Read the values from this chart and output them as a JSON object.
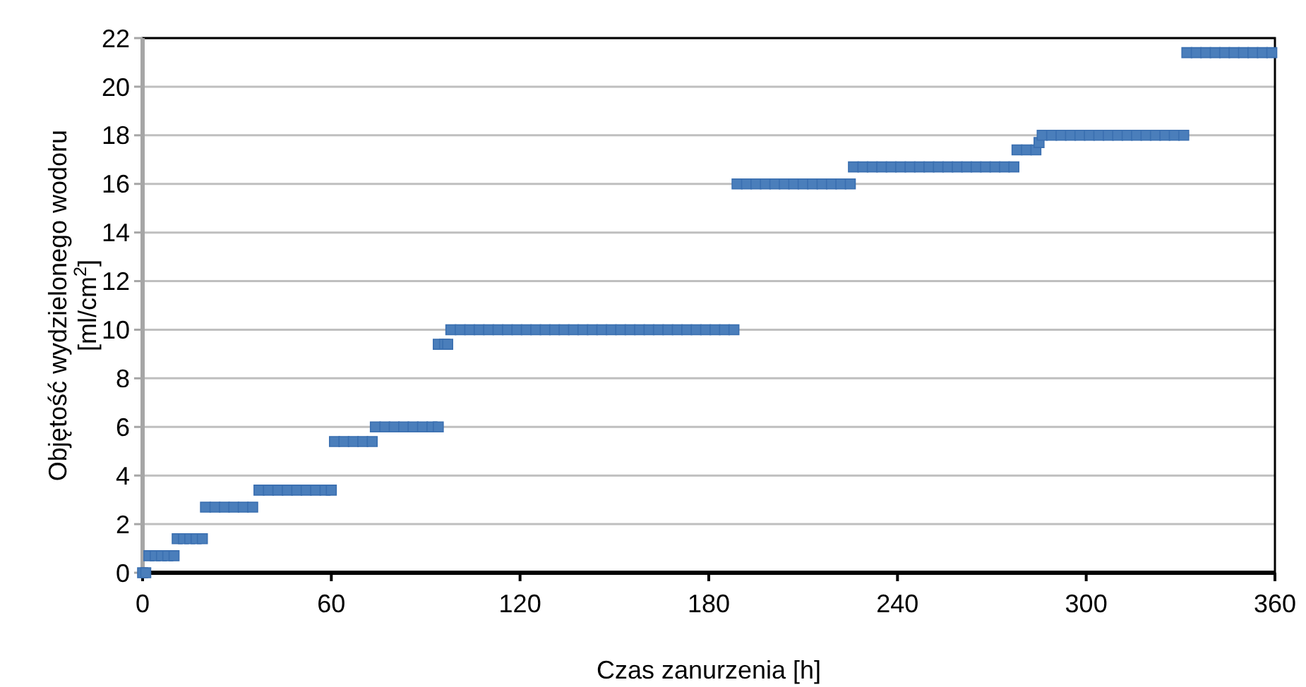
{
  "chart_data": {
    "type": "scatter",
    "xlabel": "Czas zanurzenia [h]",
    "ylabel": "Objętość wydzielonego wodoru [ml/cm$^{2}$]",
    "xlim": [
      0,
      360
    ],
    "xticks": [
      0,
      60,
      120,
      180,
      240,
      300,
      360
    ],
    "ylim": [
      0,
      22
    ],
    "yticks": [
      0,
      2,
      4,
      6,
      8,
      10,
      12,
      14,
      16,
      18,
      20,
      22
    ],
    "grid": "y",
    "marker": "square",
    "series": [
      {
        "color": "#4a7ebb",
        "x": [
          0,
          1,
          2,
          4,
          6,
          8,
          10,
          11,
          13,
          15,
          17,
          19,
          20,
          23,
          26,
          29,
          32,
          35,
          37,
          40,
          43,
          46,
          49,
          52,
          55,
          58,
          60,
          61,
          64,
          67,
          70,
          73,
          74,
          77,
          80,
          83,
          86,
          89,
          92,
          94,
          94,
          96,
          97,
          98,
          101,
          104,
          107,
          110,
          113,
          116,
          119,
          122,
          125,
          128,
          131,
          134,
          137,
          140,
          143,
          146,
          149,
          152,
          155,
          158,
          161,
          164,
          167,
          170,
          173,
          176,
          179,
          182,
          185,
          188,
          189,
          192,
          195,
          198,
          201,
          204,
          207,
          210,
          213,
          216,
          219,
          222,
          225,
          226,
          229,
          232,
          235,
          238,
          241,
          244,
          247,
          250,
          253,
          256,
          259,
          262,
          265,
          268,
          271,
          274,
          277,
          278,
          281,
          284,
          285,
          286,
          289,
          292,
          295,
          298,
          301,
          304,
          307,
          310,
          313,
          316,
          319,
          322,
          325,
          328,
          331,
          332,
          335,
          338,
          341,
          344,
          347,
          350,
          353,
          356,
          359
        ],
        "values": [
          0,
          0,
          0.7,
          0.7,
          0.7,
          0.7,
          0.7,
          1.4,
          1.4,
          1.4,
          1.4,
          1.4,
          2.7,
          2.7,
          2.7,
          2.7,
          2.7,
          2.7,
          3.4,
          3.4,
          3.4,
          3.4,
          3.4,
          3.4,
          3.4,
          3.4,
          3.4,
          5.4,
          5.4,
          5.4,
          5.4,
          5.4,
          6,
          6,
          6,
          6,
          6,
          6,
          6,
          6,
          9.4,
          9.4,
          9.4,
          10,
          10,
          10,
          10,
          10,
          10,
          10,
          10,
          10,
          10,
          10,
          10,
          10,
          10,
          10,
          10,
          10,
          10,
          10,
          10,
          10,
          10,
          10,
          10,
          10,
          10,
          10,
          10,
          10,
          10,
          10,
          16,
          16,
          16,
          16,
          16,
          16,
          16,
          16,
          16,
          16,
          16,
          16,
          16,
          16.7,
          16.7,
          16.7,
          16.7,
          16.7,
          16.7,
          16.7,
          16.7,
          16.7,
          16.7,
          16.7,
          16.7,
          16.7,
          16.7,
          16.7,
          16.7,
          16.7,
          16.7,
          17.4,
          17.4,
          17.4,
          17.7,
          18,
          18,
          18,
          18,
          18,
          18,
          18,
          18,
          18,
          18,
          18,
          18,
          18,
          18,
          18,
          18,
          21.4,
          21.4,
          21.4,
          21.4,
          21.4,
          21.4,
          21.4,
          21.4,
          21.4,
          21.4
        ]
      }
    ]
  }
}
